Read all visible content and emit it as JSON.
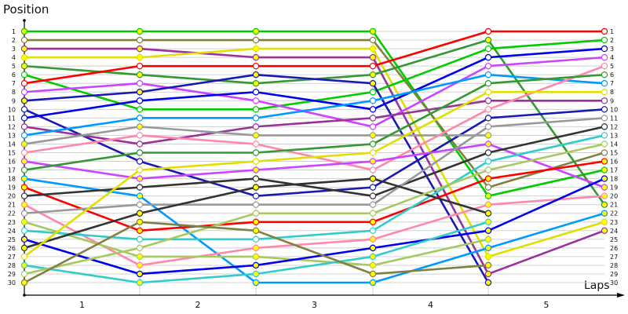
{
  "chart_data": {
    "type": "line",
    "title": "",
    "ylabel": "Position",
    "xlabel": "Laps",
    "x": [
      0,
      1,
      2,
      3,
      4,
      5
    ],
    "x_tick_labels": [
      "1",
      "2",
      "3",
      "4",
      "5"
    ],
    "y_tick_labels": [
      "1",
      "2",
      "3",
      "4",
      "5",
      "6",
      "7",
      "8",
      "9",
      "10",
      "11",
      "12",
      "13",
      "14",
      "15",
      "16",
      "17",
      "18",
      "19",
      "20",
      "21",
      "22",
      "23",
      "24",
      "25",
      "26",
      "27",
      "28",
      "29",
      "30"
    ],
    "ylim": [
      1,
      30
    ],
    "y_inverted": true,
    "grid": true,
    "legend": "none",
    "series": [
      {
        "name": "green",
        "color": "#00cc00",
        "values": [
          1,
          1,
          1,
          1,
          20,
          17
        ],
        "fills": [
          "y",
          "y",
          "y",
          "y",
          "y",
          "y"
        ]
      },
      {
        "name": "olive",
        "color": "#808040",
        "values": [
          2,
          2,
          2,
          2,
          19,
          15
        ],
        "fills": [
          "w",
          "w",
          "w",
          "w",
          "w",
          "w"
        ]
      },
      {
        "name": "purple",
        "color": "#993399",
        "values": [
          3,
          3,
          4,
          4,
          29,
          24
        ],
        "fills": [
          "y",
          "y",
          "y",
          "y",
          "y",
          "y"
        ]
      },
      {
        "name": "yellow",
        "color": "#e0e000",
        "values": [
          4,
          4,
          3,
          3,
          27,
          23
        ],
        "fills": [
          "y",
          "y",
          "y",
          "y",
          "y",
          "y"
        ]
      },
      {
        "name": "dark-green",
        "color": "#339933",
        "values": [
          5,
          6,
          7,
          6,
          2,
          21
        ],
        "fills": [
          "y",
          "y",
          "y",
          "y",
          "y",
          "y"
        ]
      },
      {
        "name": "bright-green",
        "color": "#00cc00",
        "values": [
          6,
          10,
          10,
          8,
          3,
          2
        ],
        "fills": [
          "w",
          "w",
          "w",
          "w",
          "w",
          "w"
        ]
      },
      {
        "name": "red",
        "color": "#ff0000",
        "values": [
          7,
          5,
          5,
          5,
          1,
          1
        ],
        "fills": [
          "w",
          "w",
          "w",
          "w",
          "w",
          "w"
        ]
      },
      {
        "name": "magenta",
        "color": "#cc44ff",
        "values": [
          8,
          7,
          9,
          12,
          5,
          4
        ],
        "fills": [
          "w",
          "w",
          "w",
          "w",
          "w",
          "w"
        ]
      },
      {
        "name": "navy",
        "color": "#1a1ab3",
        "values": [
          9,
          8,
          6,
          7,
          30,
          null
        ],
        "fills": [
          "y",
          "y",
          "y",
          "y",
          "y",
          ""
        ]
      },
      {
        "name": "navy-2",
        "color": "#1a1ab3",
        "values": [
          10,
          16,
          20,
          19,
          11,
          10
        ],
        "fills": [
          "w",
          "w",
          "w",
          "w",
          "w",
          "w"
        ]
      },
      {
        "name": "blue",
        "color": "#0000ee",
        "values": [
          11,
          9,
          8,
          10,
          4,
          3
        ],
        "fills": [
          "w",
          "w",
          "w",
          "w",
          "w",
          "w"
        ]
      },
      {
        "name": "purple-2",
        "color": "#993399",
        "values": [
          12,
          14,
          12,
          11,
          9,
          9
        ],
        "fills": [
          "w",
          "w",
          "w",
          "w",
          "w",
          "w"
        ]
      },
      {
        "name": "light-blue",
        "color": "#0099ff",
        "values": [
          13,
          11,
          11,
          9,
          6,
          7
        ],
        "fills": [
          "w",
          "w",
          "w",
          "w",
          "w",
          "w"
        ]
      },
      {
        "name": "gray",
        "color": "#999999",
        "values": [
          14,
          12,
          13,
          13,
          13,
          null
        ],
        "fills": [
          "y",
          "y",
          "y",
          "y",
          "y",
          ""
        ]
      },
      {
        "name": "pink",
        "color": "#ff88aa",
        "values": [
          15,
          13,
          14,
          17,
          10,
          5
        ],
        "fills": [
          "w",
          "w",
          "w",
          "w",
          "w",
          "w"
        ]
      },
      {
        "name": "magenta-2",
        "color": "#cc44ff",
        "values": [
          16,
          18,
          17,
          16,
          14,
          19
        ],
        "fills": [
          "y",
          "y",
          "y",
          "y",
          "y",
          "y"
        ]
      },
      {
        "name": "dark-green-2",
        "color": "#339933",
        "values": [
          17,
          15,
          15,
          14,
          7,
          6
        ],
        "fills": [
          "w",
          "w",
          "w",
          "w",
          "w",
          "w"
        ]
      },
      {
        "name": "light-blue-2",
        "color": "#0099ff",
        "values": [
          18,
          20,
          30,
          30,
          26,
          22
        ],
        "fills": [
          "y",
          "y",
          "y",
          "y",
          "y",
          "y"
        ]
      },
      {
        "name": "red-2",
        "color": "#ff0000",
        "values": [
          19,
          24,
          23,
          23,
          18,
          16
        ],
        "fills": [
          "y",
          "y",
          "y",
          "y",
          "y",
          "y"
        ]
      },
      {
        "name": "black",
        "color": "#333333",
        "values": [
          20,
          19,
          18,
          20,
          15,
          12
        ],
        "fills": [
          "w",
          "w",
          "w",
          "w",
          "w",
          "w"
        ]
      },
      {
        "name": "pink-2",
        "color": "#ff88aa",
        "values": [
          21,
          28,
          26,
          25,
          21,
          20
        ],
        "fills": [
          "y",
          "y",
          "y",
          "y",
          "y",
          "y"
        ]
      },
      {
        "name": "gray-2",
        "color": "#999999",
        "values": [
          22,
          21,
          21,
          21,
          12,
          11
        ],
        "fills": [
          "w",
          "w",
          "w",
          "w",
          "w",
          "w"
        ]
      },
      {
        "name": "lime",
        "color": "#a8c860",
        "values": [
          23,
          27,
          27,
          28,
          25,
          null
        ],
        "fills": [
          "y",
          "y",
          "y",
          "y",
          "y",
          ""
        ]
      },
      {
        "name": "teal",
        "color": "#33cccc",
        "values": [
          24,
          25,
          25,
          24,
          16,
          13
        ],
        "fills": [
          "w",
          "w",
          "w",
          "w",
          "w",
          "w"
        ]
      },
      {
        "name": "blue-2",
        "color": "#0000ee",
        "values": [
          25,
          29,
          28,
          26,
          24,
          18
        ],
        "fills": [
          "y",
          "y",
          "y",
          "y",
          "y",
          "y"
        ]
      },
      {
        "name": "black-2",
        "color": "#333333",
        "values": [
          26,
          22,
          19,
          18,
          22,
          null
        ],
        "fills": [
          "y",
          "y",
          "y",
          "y",
          "y",
          ""
        ]
      },
      {
        "name": "yellow-2",
        "color": "#e0e000",
        "values": [
          27,
          17,
          16,
          15,
          8,
          8
        ],
        "fills": [
          "w",
          "w",
          "w",
          "w",
          "w",
          "w"
        ]
      },
      {
        "name": "teal-2",
        "color": "#33cccc",
        "values": [
          28,
          30,
          29,
          27,
          23,
          null
        ],
        "fills": [
          "y",
          "y",
          "y",
          "y",
          "y",
          ""
        ]
      },
      {
        "name": "light-green",
        "color": "#a8c860",
        "values": [
          29,
          26,
          22,
          22,
          17,
          14
        ],
        "fills": [
          "w",
          "w",
          "w",
          "w",
          "w",
          "w"
        ]
      },
      {
        "name": "olive-2",
        "color": "#808040",
        "values": [
          30,
          23,
          24,
          29,
          28,
          null
        ],
        "fills": [
          "y",
          "y",
          "y",
          "y",
          "y",
          ""
        ]
      }
    ]
  },
  "labels": {
    "y_axis_title": "Position",
    "x_axis_title": "Laps"
  }
}
